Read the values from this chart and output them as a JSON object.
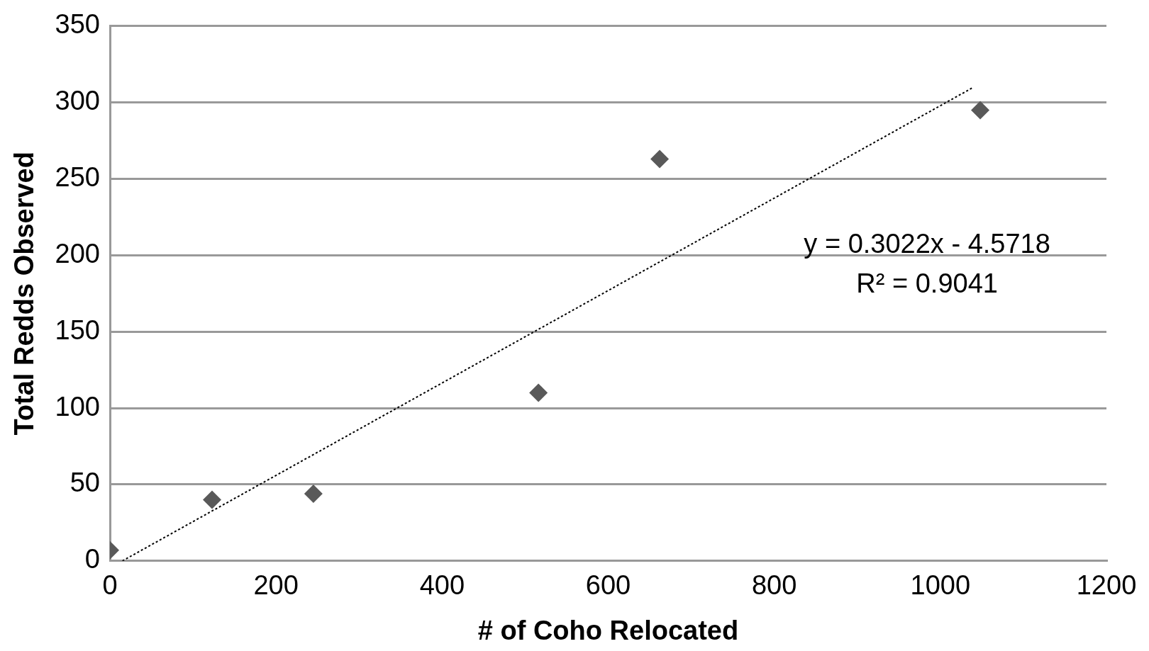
{
  "chart_data": {
    "type": "scatter",
    "xlabel": "# of Coho Relocated",
    "ylabel": "Total Redds Observed",
    "x": [
      0,
      123,
      245,
      516,
      662,
      1048
    ],
    "series": [
      {
        "color": "#595959",
        "marker": "diamond",
        "values": [
          7,
          40,
          44,
          110,
          263,
          295
        ]
      },
      {
        "type": "line",
        "color": "#000000",
        "line_style": "dotted",
        "marker": "none",
        "x": [
          15,
          1040
        ],
        "values": [
          0,
          310
        ]
      }
    ],
    "xlim": [
      0,
      1200
    ],
    "xticks": [
      0,
      200,
      400,
      600,
      800,
      1000,
      1200
    ],
    "ylim": [
      0,
      350
    ],
    "yticks": [
      0,
      50,
      100,
      150,
      200,
      250,
      300,
      350
    ],
    "grid": "y",
    "legend": false,
    "annotations": [
      "y = 0.3022x - 4.5718",
      "R² = 0.9041"
    ]
  }
}
